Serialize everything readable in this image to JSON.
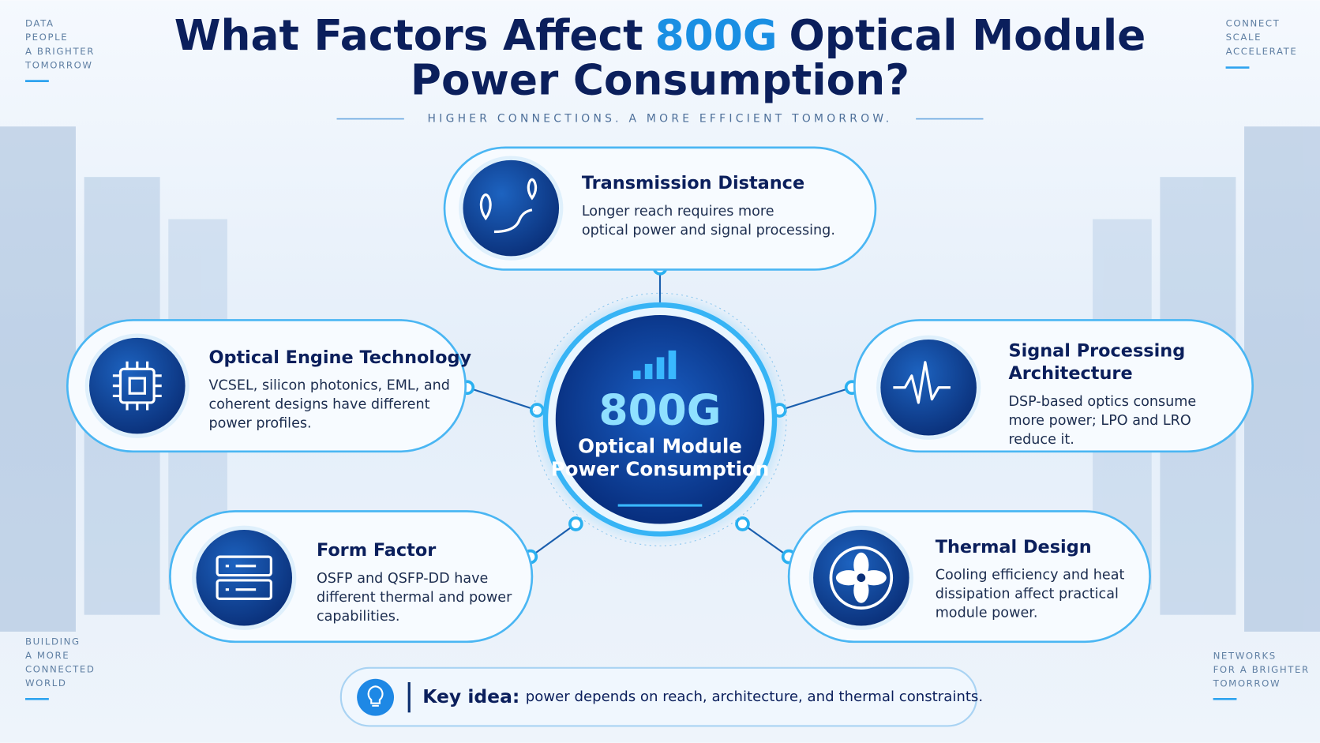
{
  "title": {
    "before": "What Factors Affect",
    "highlight": "800G",
    "after": "Optical Module",
    "line2": "Power Consumption?"
  },
  "subtitle": "HIGHER CONNECTIONS. A MORE EFFICIENT TOMORROW.",
  "corners": {
    "top_left": [
      "DATA",
      "PEOPLE",
      "A BRIGHTER",
      "TOMORROW"
    ],
    "top_right": [
      "CONNECT",
      "SCALE",
      "ACCELERATE"
    ],
    "bottom_left": [
      "BUILDING",
      "A MORE",
      "CONNECTED",
      "WORLD"
    ],
    "bottom_right": [
      "NETWORKS",
      "FOR A BRIGHTER",
      "TOMORROW"
    ]
  },
  "center": {
    "value": "800G",
    "label_lines": [
      "Optical Module",
      "Power Consumption"
    ]
  },
  "factors": [
    {
      "title_lines": [
        "Transmission Distance"
      ],
      "desc_lines": [
        "Longer reach requires more",
        "optical power and signal processing."
      ]
    },
    {
      "title_lines": [
        "Optical Engine Technology"
      ],
      "desc_lines": [
        "VCSEL, silicon photonics, EML, and",
        "coherent designs have different",
        "power profiles."
      ]
    },
    {
      "title_lines": [
        "Signal Processing",
        "Architecture"
      ],
      "desc_lines": [
        "DSP-based optics consume",
        "more power; LPO and LRO",
        "reduce it."
      ]
    },
    {
      "title_lines": [
        "Form Factor"
      ],
      "desc_lines": [
        "OSFP and QSFP-DD have",
        "different thermal and power",
        "capabilities."
      ]
    },
    {
      "title_lines": [
        "Thermal Design"
      ],
      "desc_lines": [
        "Cooling efficiency and heat",
        "dissipation affect practical",
        "module power."
      ]
    }
  ],
  "key_idea": {
    "label": "Key idea:",
    "text": "power depends on reach, architecture, and thermal constraints."
  }
}
